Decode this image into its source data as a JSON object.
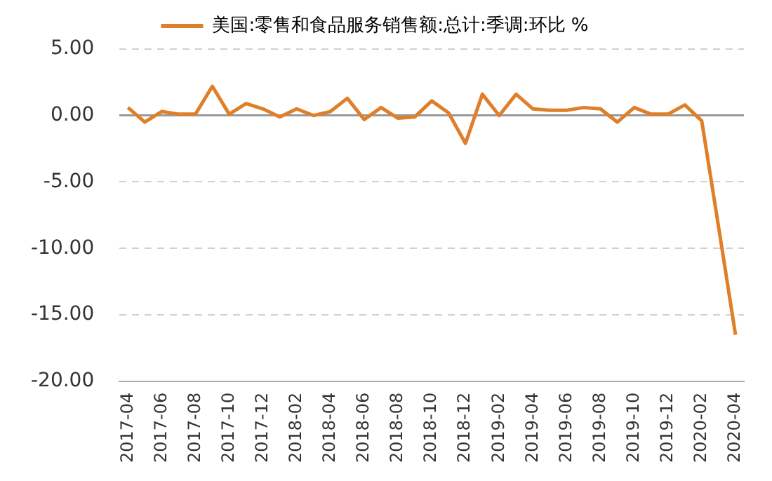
{
  "chart_data": {
    "type": "line",
    "categories": [
      "2017-04",
      null,
      "2017-06",
      null,
      "2017-08",
      null,
      "2017-10",
      null,
      "2017-12",
      null,
      "2018-02",
      null,
      "2018-04",
      null,
      "2018-06",
      null,
      "2018-08",
      null,
      "2018-10",
      null,
      "2018-12",
      null,
      "2019-02",
      null,
      "2019-04",
      null,
      "2019-06",
      null,
      "2019-08",
      null,
      "2019-10",
      null,
      "2019-12",
      null,
      "2020-02",
      null,
      "2020-04"
    ],
    "series": [
      {
        "name": "美国:零售和食品服务销售额:总计:季调:环比 %",
        "color": "#e07f2a",
        "values": [
          0.6,
          -0.5,
          0.3,
          0.1,
          0.1,
          2.2,
          0.1,
          0.9,
          0.5,
          -0.1,
          0.5,
          0.0,
          0.3,
          1.3,
          -0.3,
          0.6,
          -0.2,
          -0.1,
          1.1,
          0.2,
          -2.1,
          1.6,
          0.0,
          1.6,
          0.5,
          0.4,
          0.4,
          0.6,
          0.5,
          -0.5,
          0.6,
          0.1,
          0.1,
          0.8,
          -0.4,
          -8.4,
          -16.5
        ]
      }
    ],
    "ylim": [
      -20,
      5
    ],
    "yticks": [
      {
        "value": -20,
        "label": "-20.00"
      },
      {
        "value": -15,
        "label": "-15.00"
      },
      {
        "value": -10,
        "label": "-10.00"
      },
      {
        "value": -5,
        "label": "-5.00"
      },
      {
        "value": 0,
        "label": "0.00"
      },
      {
        "value": 5,
        "label": "5.00"
      }
    ],
    "grid": "y",
    "legend": "top",
    "marker": "none",
    "line_style": "solid"
  }
}
